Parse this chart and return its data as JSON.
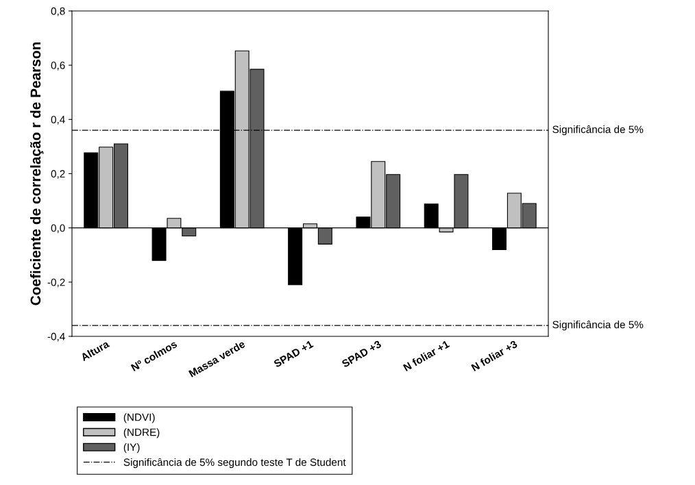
{
  "chart_data": {
    "type": "bar",
    "ylabel": "Coeficiente de correlação r de Pearson",
    "categories": [
      "Altura",
      "Nº colmos",
      "Massa verde",
      "SPAD +1",
      "SPAD +3",
      "N foliar +1",
      "N foliar +3"
    ],
    "series": [
      {
        "name": "(NDVI)",
        "color": "#000000",
        "values": [
          0.277,
          -0.12,
          0.504,
          -0.21,
          0.04,
          0.088,
          -0.08
        ]
      },
      {
        "name": "(NDRE)",
        "color": "#c0c0c0",
        "values": [
          0.298,
          0.035,
          0.653,
          0.015,
          0.245,
          -0.015,
          0.128
        ]
      },
      {
        "name": "(IY)",
        "color": "#606060",
        "values": [
          0.31,
          -0.03,
          0.585,
          -0.06,
          0.197,
          0.197,
          0.09
        ]
      }
    ],
    "ylim": [
      -0.4,
      0.8
    ],
    "yticks": [
      {
        "value": -0.4,
        "label": "-0,4"
      },
      {
        "value": -0.2,
        "label": "-0,2"
      },
      {
        "value": 0,
        "label": "0,0"
      },
      {
        "value": 0.2,
        "label": "0,2"
      },
      {
        "value": 0.4,
        "label": "0,4"
      },
      {
        "value": 0.6,
        "label": "0,6"
      },
      {
        "value": 0.8,
        "label": "0,8"
      }
    ],
    "ref_lines": [
      {
        "axis": "y",
        "value": 0.36,
        "label": "Significância de 5%",
        "line_style": "dashdot",
        "color": "#000000"
      },
      {
        "axis": "y",
        "value": -0.36,
        "label": "Significância de 5%",
        "line_style": "dashdot",
        "color": "#000000"
      },
      {
        "axis": "y",
        "value": 0,
        "line_style": "solid",
        "color": "#000000"
      }
    ],
    "annotations": [
      "Significância de 5% segundo teste T de Student"
    ],
    "grid": false,
    "legend": "bottom"
  }
}
